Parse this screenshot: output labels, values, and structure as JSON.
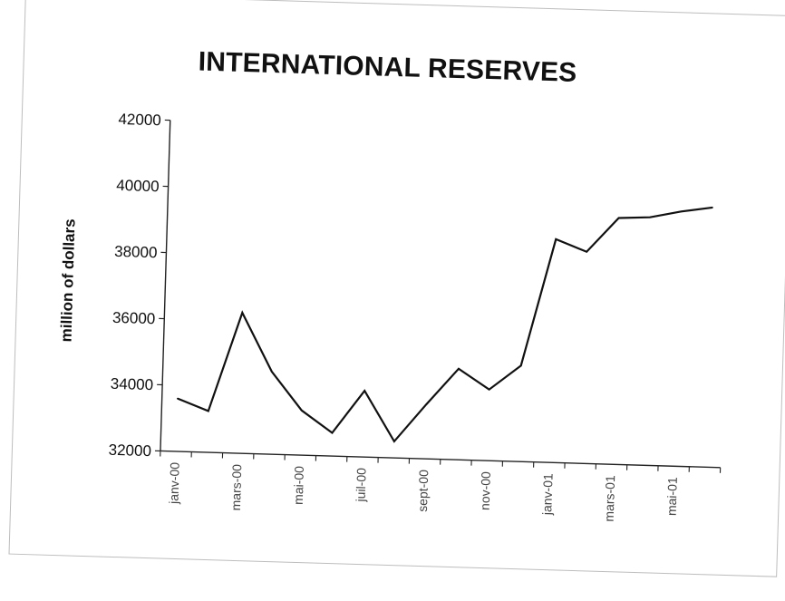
{
  "chart_data": {
    "type": "line",
    "title": "INTERNATIONAL RESERVES",
    "xlabel": "",
    "ylabel": "million of dollars",
    "ylim": [
      32000,
      42000
    ],
    "yticks": [
      32000,
      34000,
      36000,
      38000,
      40000,
      42000
    ],
    "categories": [
      "janv-00",
      "",
      "mars-00",
      "",
      "mai-00",
      "",
      "juil-00",
      "",
      "sept-00",
      "",
      "nov-00",
      "",
      "janv-01",
      "",
      "mars-01",
      "",
      "mai-01",
      ""
    ],
    "series": [
      {
        "name": "",
        "values": [
          33600,
          33250,
          36250,
          34500,
          33350,
          32700,
          34000,
          32500,
          33650,
          34750,
          34150,
          34900,
          38750,
          38400,
          39450,
          39500,
          39700,
          39850
        ]
      }
    ],
    "grid": false,
    "legend": "none",
    "line_color": "#111111"
  }
}
